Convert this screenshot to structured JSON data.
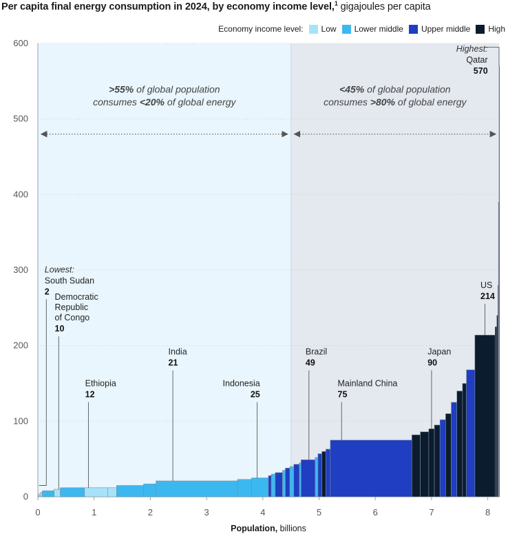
{
  "title": {
    "main": "Per capita final energy consumption in 2024, by economy income level,",
    "footnote": "1",
    "unit": " gigajoules per capita"
  },
  "legend": {
    "label": "Economy income level:",
    "items": [
      {
        "key": "low",
        "label": "Low",
        "color": "#a6e3fa"
      },
      {
        "key": "lower_middle",
        "label": "Lower middle",
        "color": "#3cb8f0"
      },
      {
        "key": "upper_middle",
        "label": "Upper middle",
        "color": "#1f3ec1"
      },
      {
        "key": "high",
        "label": "High",
        "color": "#0b1c2e"
      }
    ]
  },
  "chart_data": {
    "type": "bar",
    "variant": "variable-width (Marimekko) bars",
    "title": "Per capita final energy consumption in 2024, by economy income level",
    "xlabel": "Population, billions",
    "ylabel": "gigajoules per capita",
    "xlim": [
      0,
      8.2
    ],
    "ylim": [
      0,
      600
    ],
    "x_ticks": [
      0,
      1,
      2,
      3,
      4,
      5,
      6,
      7,
      8
    ],
    "y_ticks": [
      0,
      100,
      200,
      300,
      400,
      500,
      600
    ],
    "split_population_billions": 4.5,
    "regions": [
      {
        "name": "left",
        "from": 0,
        "to": 4.5,
        "line1_bold": ">55%",
        "line1_rest": " of global population",
        "line2_pre": "consumes ",
        "line2_bold": "<20%",
        "line2_rest": " of global energy"
      },
      {
        "name": "right",
        "from": 4.5,
        "to": 8.2,
        "line1_bold": "<45%",
        "line1_rest": " of global population",
        "line2_pre": "consumes ",
        "line2_bold": ">80%",
        "line2_rest": " of global energy"
      }
    ],
    "segments": [
      {
        "x0": 0.0,
        "x1": 0.02,
        "value": 2,
        "level": "low"
      },
      {
        "x0": 0.02,
        "x1": 0.05,
        "value": 4,
        "level": "low"
      },
      {
        "x0": 0.05,
        "x1": 0.08,
        "value": 6,
        "level": "low"
      },
      {
        "x0": 0.08,
        "x1": 0.29,
        "value": 8,
        "level": "lower_middle"
      },
      {
        "x0": 0.29,
        "x1": 0.4,
        "value": 10,
        "level": "low"
      },
      {
        "x0": 0.4,
        "x1": 0.83,
        "value": 12,
        "level": "lower_middle"
      },
      {
        "x0": 0.83,
        "x1": 1.24,
        "value": 12,
        "level": "low"
      },
      {
        "x0": 1.24,
        "x1": 1.4,
        "value": 12,
        "level": "low"
      },
      {
        "x0": 1.4,
        "x1": 1.88,
        "value": 15,
        "level": "lower_middle"
      },
      {
        "x0": 1.88,
        "x1": 2.1,
        "value": 17,
        "level": "lower_middle"
      },
      {
        "x0": 2.1,
        "x1": 3.55,
        "value": 21,
        "level": "lower_middle"
      },
      {
        "x0": 3.55,
        "x1": 3.8,
        "value": 23,
        "level": "lower_middle"
      },
      {
        "x0": 3.8,
        "x1": 4.1,
        "value": 25,
        "level": "lower_middle"
      },
      {
        "x0": 4.1,
        "x1": 4.15,
        "value": 28,
        "level": "upper_middle"
      },
      {
        "x0": 4.15,
        "x1": 4.22,
        "value": 30,
        "level": "lower_middle"
      },
      {
        "x0": 4.22,
        "x1": 4.35,
        "value": 32,
        "level": "upper_middle"
      },
      {
        "x0": 4.35,
        "x1": 4.4,
        "value": 35,
        "level": "lower_middle"
      },
      {
        "x0": 4.4,
        "x1": 4.48,
        "value": 38,
        "level": "upper_middle"
      },
      {
        "x0": 4.48,
        "x1": 4.55,
        "value": 40,
        "level": "lower_middle"
      },
      {
        "x0": 4.55,
        "x1": 4.65,
        "value": 43,
        "level": "upper_middle"
      },
      {
        "x0": 4.65,
        "x1": 4.68,
        "value": 45,
        "level": "lower_middle"
      },
      {
        "x0": 4.68,
        "x1": 4.93,
        "value": 49,
        "level": "upper_middle"
      },
      {
        "x0": 4.93,
        "x1": 4.98,
        "value": 52,
        "level": "lower_middle"
      },
      {
        "x0": 4.98,
        "x1": 5.05,
        "value": 57,
        "level": "upper_middle"
      },
      {
        "x0": 5.05,
        "x1": 5.12,
        "value": 60,
        "level": "high"
      },
      {
        "x0": 5.12,
        "x1": 5.2,
        "value": 63,
        "level": "upper_middle"
      },
      {
        "x0": 5.2,
        "x1": 6.65,
        "value": 75,
        "level": "upper_middle"
      },
      {
        "x0": 6.65,
        "x1": 6.8,
        "value": 82,
        "level": "high"
      },
      {
        "x0": 6.8,
        "x1": 6.95,
        "value": 86,
        "level": "high"
      },
      {
        "x0": 6.95,
        "x1": 7.05,
        "value": 90,
        "level": "high"
      },
      {
        "x0": 7.05,
        "x1": 7.15,
        "value": 95,
        "level": "high"
      },
      {
        "x0": 7.15,
        "x1": 7.25,
        "value": 102,
        "level": "upper_middle"
      },
      {
        "x0": 7.25,
        "x1": 7.35,
        "value": 110,
        "level": "high"
      },
      {
        "x0": 7.35,
        "x1": 7.45,
        "value": 125,
        "level": "upper_middle"
      },
      {
        "x0": 7.45,
        "x1": 7.55,
        "value": 140,
        "level": "high"
      },
      {
        "x0": 7.55,
        "x1": 7.62,
        "value": 150,
        "level": "high"
      },
      {
        "x0": 7.62,
        "x1": 7.77,
        "value": 168,
        "level": "upper_middle"
      },
      {
        "x0": 7.77,
        "x1": 8.13,
        "value": 214,
        "level": "high"
      },
      {
        "x0": 8.13,
        "x1": 8.16,
        "value": 225,
        "level": "high"
      },
      {
        "x0": 8.16,
        "x1": 8.18,
        "value": 240,
        "level": "high"
      },
      {
        "x0": 8.18,
        "x1": 8.19,
        "value": 280,
        "level": "high"
      },
      {
        "x0": 8.19,
        "x1": 8.2,
        "value": 390,
        "level": "high"
      },
      {
        "x0": 8.2,
        "x1": 8.21,
        "value": 570,
        "level": "high"
      }
    ],
    "annotations": [
      {
        "key": "south-sudan",
        "prefix": "Lowest:",
        "lines": [
          "South Sudan"
        ],
        "value": "2",
        "x": 0.15,
        "value_y": 2,
        "top_gj": 255,
        "anchor": "start",
        "label_x": 0.12
      },
      {
        "key": "drc",
        "prefix": "",
        "lines": [
          "Democratic",
          "Republic",
          "of Congo"
        ],
        "value": "10",
        "x": 0.37,
        "value_y": 10,
        "top_gj": 205,
        "anchor": "start",
        "label_x": 0.3
      },
      {
        "key": "ethiopia",
        "prefix": "",
        "lines": [
          "Ethiopia"
        ],
        "value": "12",
        "x": 0.9,
        "value_y": 12,
        "top_gj": 118,
        "anchor": "start",
        "label_x": 0.84
      },
      {
        "key": "india",
        "prefix": "",
        "lines": [
          "India"
        ],
        "value": "21",
        "x": 2.4,
        "value_y": 21,
        "top_gj": 160,
        "anchor": "start",
        "label_x": 2.32
      },
      {
        "key": "indonesia",
        "prefix": "",
        "lines": [
          "Indonesia"
        ],
        "value": "25",
        "x": 3.9,
        "value_y": 25,
        "top_gj": 118,
        "anchor": "end",
        "label_x": 3.95
      },
      {
        "key": "brazil",
        "prefix": "",
        "lines": [
          "Brazil"
        ],
        "value": "49",
        "x": 4.82,
        "value_y": 49,
        "top_gj": 160,
        "anchor": "start",
        "label_x": 4.76
      },
      {
        "key": "china",
        "prefix": "",
        "lines": [
          "Mainland China"
        ],
        "value": "75",
        "x": 5.4,
        "value_y": 75,
        "top_gj": 118,
        "anchor": "start",
        "label_x": 5.33
      },
      {
        "key": "japan",
        "prefix": "",
        "lines": [
          "Japan"
        ],
        "value": "90",
        "x": 7.0,
        "value_y": 90,
        "top_gj": 160,
        "anchor": "start",
        "label_x": 6.93
      },
      {
        "key": "us",
        "prefix": "",
        "lines": [
          "US"
        ],
        "value": "214",
        "x": 7.95,
        "value_y": 214,
        "top_gj": 248,
        "anchor": "start",
        "label_x": 7.87
      },
      {
        "key": "qatar",
        "prefix": "Highest:",
        "lines": [
          "Qatar"
        ],
        "value": "570",
        "x": 8.2,
        "value_y": 570,
        "top_gj": 0,
        "anchor": "end",
        "label_x": 8.0
      }
    ]
  }
}
